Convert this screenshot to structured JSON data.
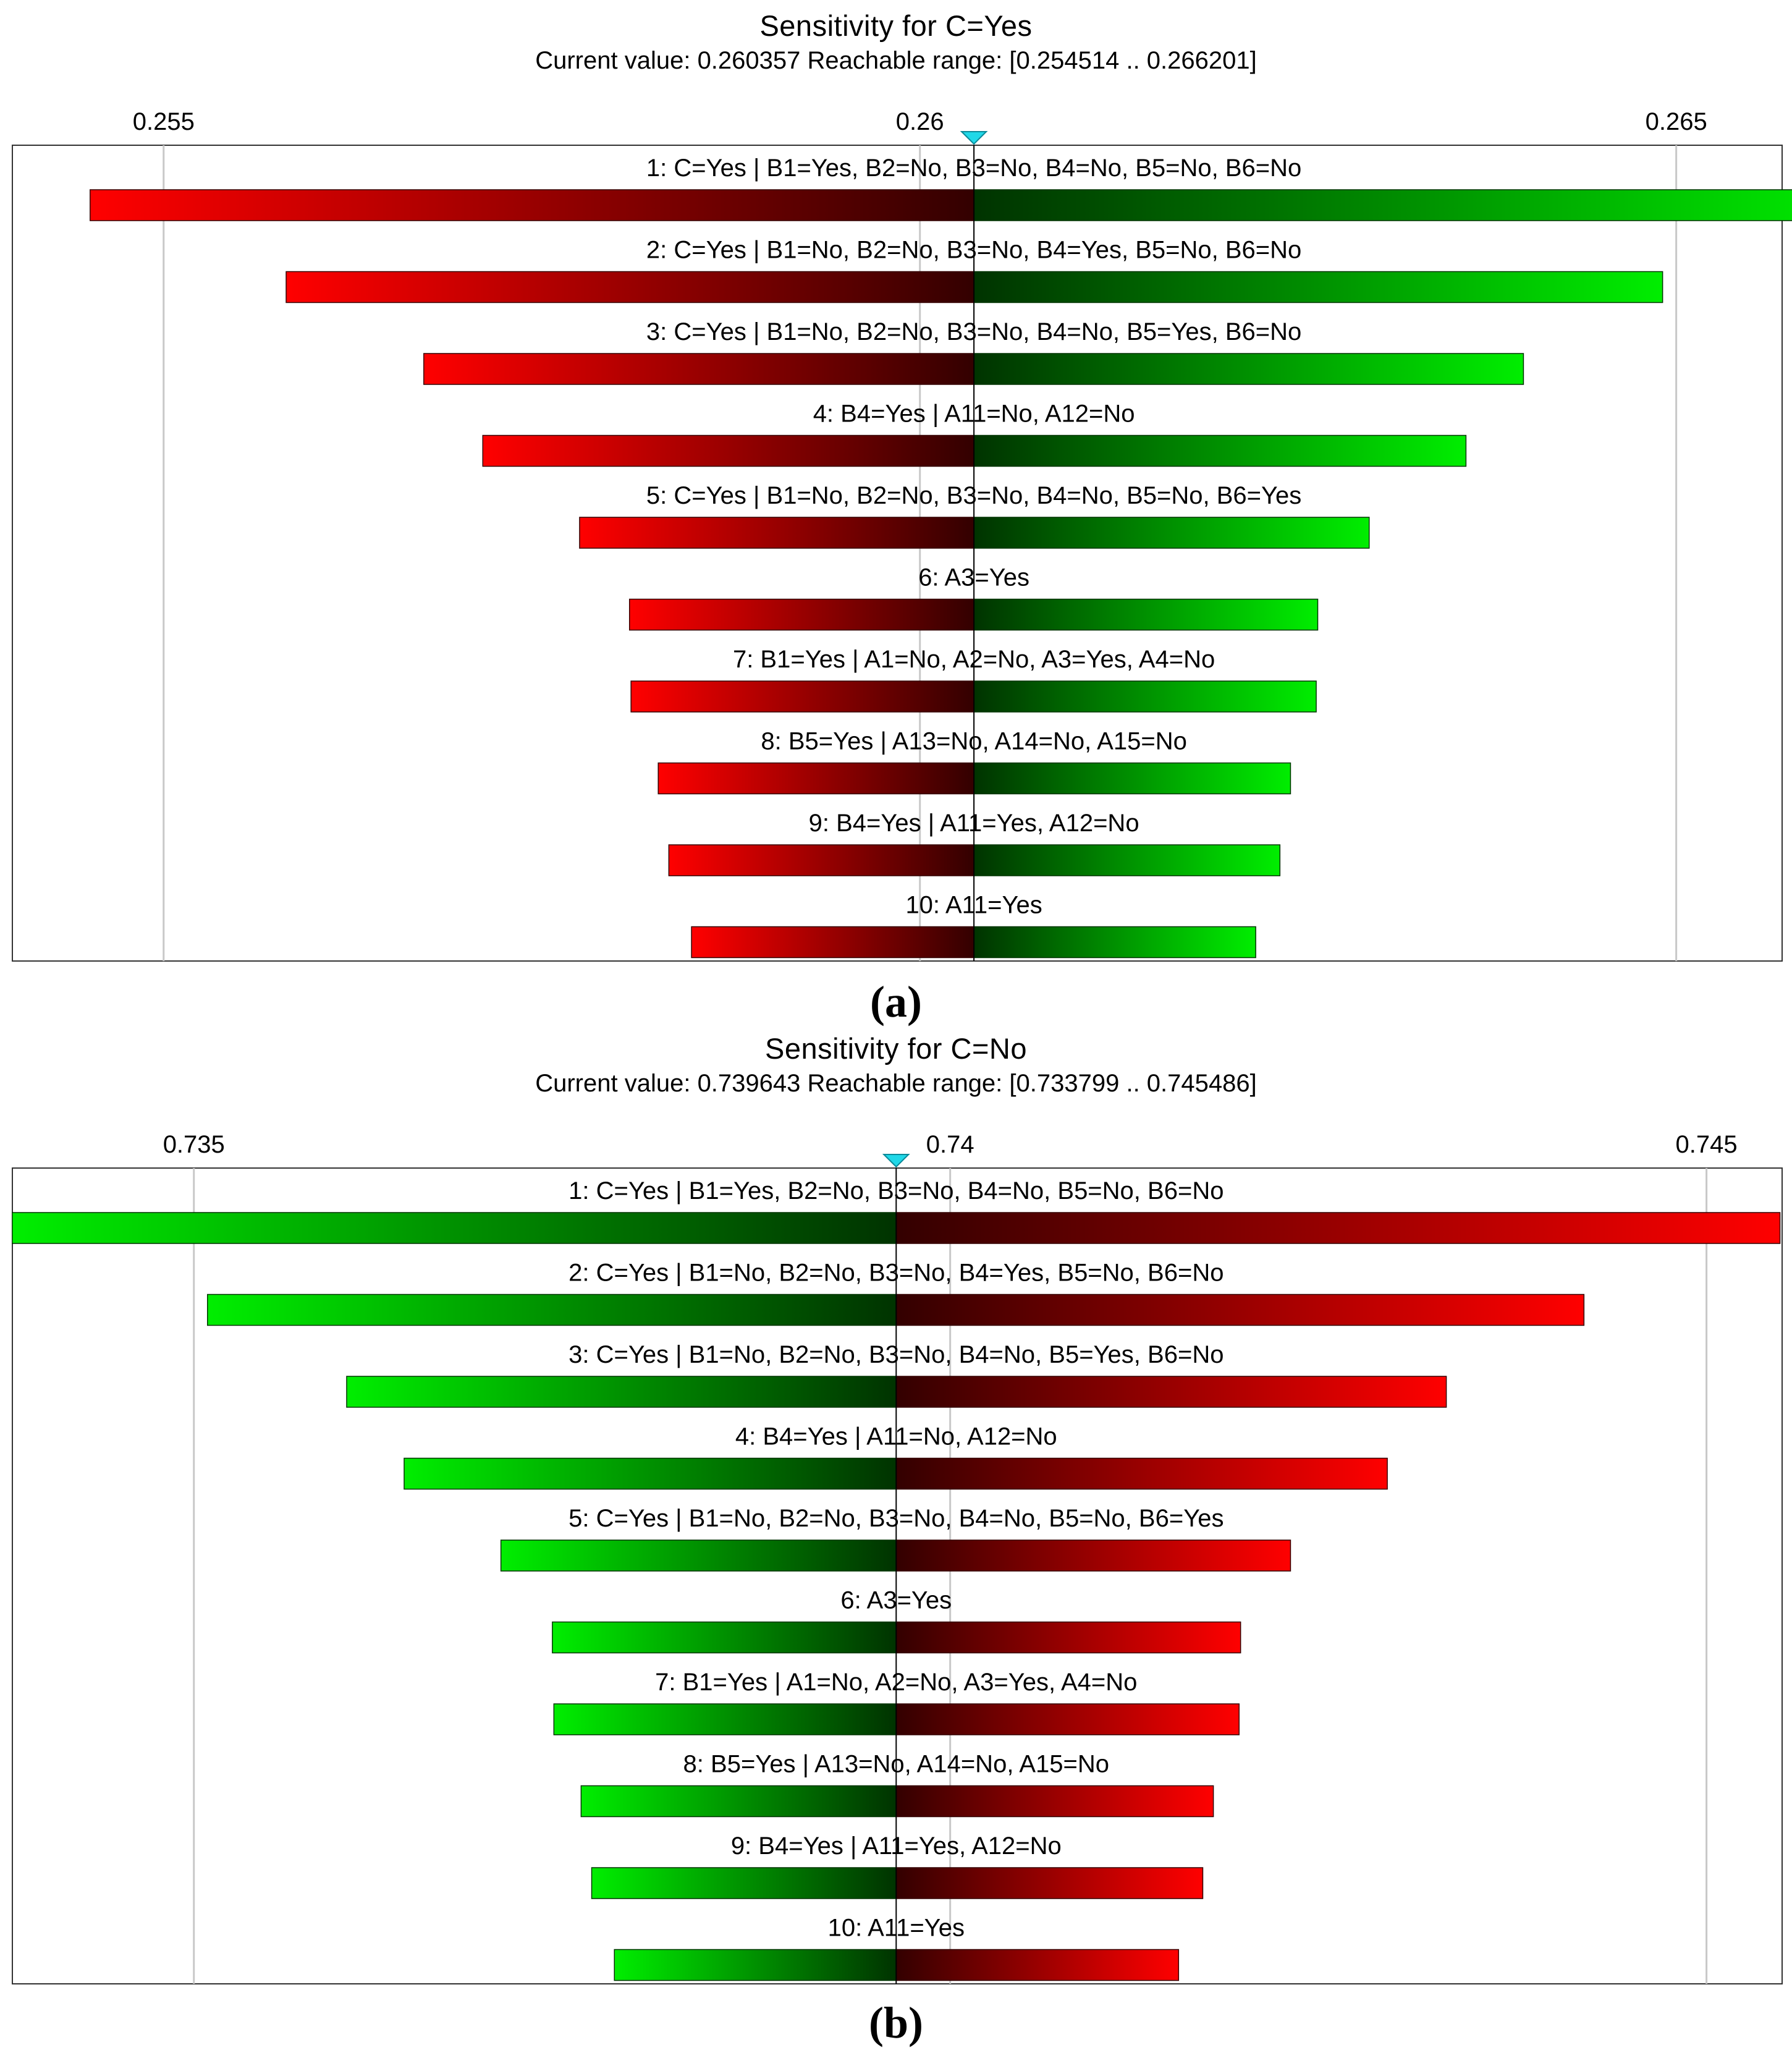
{
  "colors": {
    "increase": "#00ee00",
    "decrease": "#ff0000",
    "dark_green": "#003300",
    "dark_red": "#330000",
    "gridline": "#c8c8c8",
    "frame": "#333333",
    "marker": "#20d8e8"
  },
  "panels": {
    "a": {
      "label": "(a)"
    },
    "b": {
      "label": "(b)"
    }
  },
  "chart_data": [
    {
      "type": "bar",
      "orientation": "tornado",
      "title": "Sensitivity for C=Yes",
      "subtitle": "Current value: 0.260357  Reachable range: [0.254514 .. 0.266201]",
      "current_value": 0.260357,
      "xlim": [
        0.254,
        0.2657
      ],
      "ticks": [
        {
          "value": 0.255,
          "label": "0.255"
        },
        {
          "value": 0.26,
          "label": "0.26"
        },
        {
          "value": 0.265,
          "label": "0.265"
        }
      ],
      "grid": true,
      "left_color": "red",
      "right_color": "green",
      "bars": [
        {
          "label": "1: C=Yes | B1=Yes, B2=No, B3=No, B4=No, B5=No, B6=No",
          "low": 0.254514,
          "high": 0.266201
        },
        {
          "label": "2: C=Yes | B1=No, B2=No, B3=No, B4=Yes, B5=No, B6=No",
          "low": 0.25581,
          "high": 0.26491
        },
        {
          "label": "3: C=Yes | B1=No, B2=No, B3=No, B4=No, B5=Yes, B6=No",
          "low": 0.25672,
          "high": 0.26399
        },
        {
          "label": "4: B4=Yes | A11=No, A12=No",
          "low": 0.25711,
          "high": 0.26361
        },
        {
          "label": "5: C=Yes | B1=No, B2=No, B3=No, B4=No, B5=No, B6=Yes",
          "low": 0.25775,
          "high": 0.26297
        },
        {
          "label": "6: A3=Yes",
          "low": 0.25808,
          "high": 0.26263
        },
        {
          "label": "7: B1=Yes | A1=No, A2=No, A3=Yes, A4=No",
          "low": 0.25809,
          "high": 0.26262
        },
        {
          "label": "8: B5=Yes | A13=No, A14=No, A15=No",
          "low": 0.25827,
          "high": 0.26245
        },
        {
          "label": "9: B4=Yes | A11=Yes, A12=No",
          "low": 0.25834,
          "high": 0.26238
        },
        {
          "label": "10: A11=Yes",
          "low": 0.25849,
          "high": 0.26222
        }
      ]
    },
    {
      "type": "bar",
      "orientation": "tornado",
      "title": "Sensitivity for C=No",
      "subtitle": "Current value: 0.739643  Reachable range: [0.733799 .. 0.745486]",
      "current_value": 0.739643,
      "xlim": [
        0.7338,
        0.7455
      ],
      "ticks": [
        {
          "value": 0.735,
          "label": "0.735"
        },
        {
          "value": 0.74,
          "label": "0.74"
        },
        {
          "value": 0.745,
          "label": "0.745"
        }
      ],
      "grid": true,
      "left_color": "green",
      "right_color": "red",
      "bars": [
        {
          "label": "1: C=Yes | B1=Yes, B2=No, B3=No, B4=No, B5=No, B6=No",
          "low": 0.733799,
          "high": 0.745486
        },
        {
          "label": "2: C=Yes | B1=No, B2=No, B3=No, B4=Yes, B5=No, B6=No",
          "low": 0.73509,
          "high": 0.74419
        },
        {
          "label": "3: C=Yes | B1=No, B2=No, B3=No, B4=No, B5=Yes, B6=No",
          "low": 0.73601,
          "high": 0.74328
        },
        {
          "label": "4: B4=Yes | A11=No, A12=No",
          "low": 0.73639,
          "high": 0.74289
        },
        {
          "label": "5: C=Yes | B1=No, B2=No, B3=No, B4=No, B5=No, B6=Yes",
          "low": 0.73703,
          "high": 0.74225
        },
        {
          "label": "6: A3=Yes",
          "low": 0.73737,
          "high": 0.74192
        },
        {
          "label": "7: B1=Yes | A1=No, A2=No, A3=Yes, A4=No",
          "low": 0.73738,
          "high": 0.74191
        },
        {
          "label": "8: B5=Yes | A13=No, A14=No, A15=No",
          "low": 0.73756,
          "high": 0.74174
        },
        {
          "label": "9: B4=Yes | A11=Yes, A12=No",
          "low": 0.73763,
          "high": 0.74167
        },
        {
          "label": "10: A11=Yes",
          "low": 0.73778,
          "high": 0.74151
        }
      ]
    }
  ]
}
